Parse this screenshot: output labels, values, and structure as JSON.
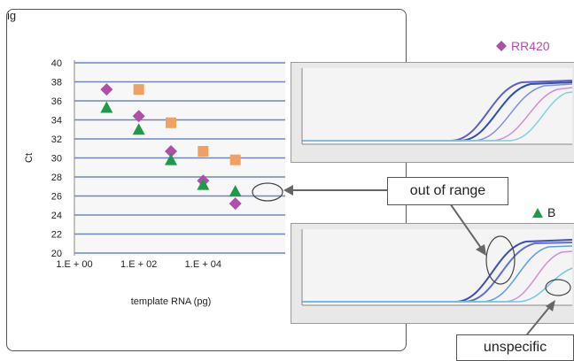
{
  "figure": {
    "title_fragment": "ig",
    "callout_out_of_range": "out of range",
    "callout_unspecific": "unspecific"
  },
  "colors": {
    "rr420": "#b04fa8",
    "b": "#1e9a4a",
    "orange": "#f0a060"
  },
  "legend": {
    "rr420_label": "RR420",
    "rr420_icon": "diamond-icon",
    "b_label": "B",
    "b_icon": "triangle-icon"
  },
  "chart_data": {
    "type": "scatter",
    "xlabel": "template RNA (pg)",
    "ylabel": "Ct",
    "x_ticks": [
      "1.E + 00",
      "1.E + 02",
      "1.E + 04"
    ],
    "x_scale": "log10",
    "xlim": [
      1,
      1000000
    ],
    "ylim": [
      20,
      40
    ],
    "y_ticks": [
      20,
      22,
      24,
      26,
      28,
      30,
      32,
      34,
      36,
      38,
      40
    ],
    "grid": true,
    "series": [
      {
        "marker": "diamond",
        "color": "#b04fa8",
        "x": [
          10,
          100,
          1000,
          10000,
          100000
        ],
        "y": [
          37.2,
          34.4,
          30.7,
          27.6,
          25.2
        ]
      },
      {
        "marker": "square",
        "color": "#f0a060",
        "x": [
          100,
          1000,
          10000,
          100000
        ],
        "y": [
          37.2,
          33.7,
          30.7,
          29.8
        ]
      },
      {
        "marker": "triangle",
        "color": "#1e9a4a",
        "x": [
          10,
          100,
          1000,
          10000,
          100000
        ],
        "y": [
          35.3,
          33.0,
          29.8,
          27.2,
          26.5
        ]
      }
    ]
  }
}
